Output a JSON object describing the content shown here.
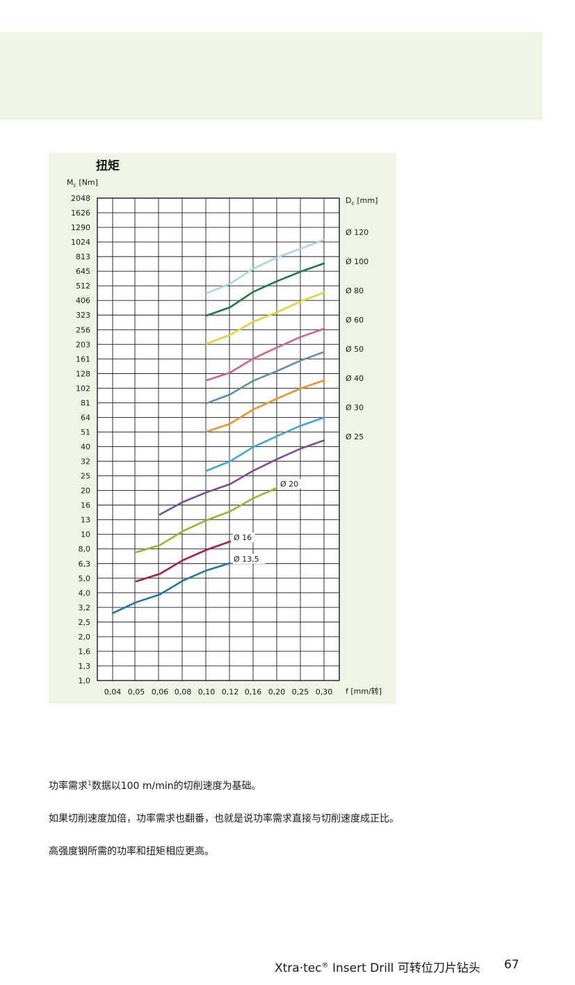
{
  "chart_data": {
    "type": "line",
    "title": "扭矩",
    "ylabel_main": "M",
    "ylabel_sub": "c",
    "ylabel_unit": "[Nm]",
    "right_label_main": "D",
    "right_label_sub": "c",
    "right_label_unit": "[mm]",
    "xlabel": "f [mm/转]",
    "y_scale": "log",
    "grid": true,
    "x_ticks": [
      "0,04",
      "0,05",
      "0,06",
      "0,08",
      "0,10",
      "0,12",
      "0,16",
      "0,20",
      "0,25",
      "0,30"
    ],
    "y_ticks": [
      "1,0",
      "1,3",
      "1,6",
      "2,0",
      "2,5",
      "3,2",
      "4,0",
      "5,0",
      "6,3",
      "8,0",
      "10",
      "13",
      "16",
      "20",
      "25",
      "32",
      "40",
      "51",
      "64",
      "81",
      "102",
      "128",
      "161",
      "203",
      "256",
      "323",
      "406",
      "512",
      "645",
      "813",
      "1024",
      "1290",
      "1626",
      "2048"
    ],
    "right_ticks": [
      "Ø 120",
      "Ø 100",
      "Ø 80",
      "Ø 60",
      "Ø 50",
      "Ø 40",
      "Ø 30",
      "Ø 25"
    ],
    "x": [
      0.04,
      0.05,
      0.06,
      0.08,
      0.1,
      0.12,
      0.16,
      0.2,
      0.25,
      0.3
    ],
    "series": [
      {
        "name": "Ø 13,5",
        "color": "#1c75b7",
        "values": [
          2.9,
          3.45,
          3.9,
          4.85,
          5.7,
          6.4,
          null,
          null,
          null,
          null
        ]
      },
      {
        "name": "Ø 16",
        "color": "#b5164b",
        "values": [
          null,
          4.8,
          5.4,
          6.7,
          7.9,
          9.0,
          null,
          null,
          null,
          null
        ]
      },
      {
        "name": "Ø 20",
        "color": "#9cb32a",
        "values": [
          null,
          7.6,
          8.5,
          10.6,
          12.6,
          14.5,
          17.8,
          21.0,
          null,
          null
        ]
      },
      {
        "name": "Ø 25",
        "color": "#7b4a9c",
        "values": [
          null,
          null,
          13.8,
          16.8,
          19.6,
          22.3,
          27.5,
          33.0,
          39.0,
          44.5
        ]
      },
      {
        "name": "Ø 30",
        "color": "#3aa7d6",
        "values": [
          null,
          null,
          null,
          null,
          27.5,
          32.0,
          40.0,
          47.5,
          56.0,
          64.0
        ]
      },
      {
        "name": "Ø 40",
        "color": "#f0941f",
        "values": [
          null,
          null,
          null,
          null,
          51.0,
          58.0,
          72.5,
          86.0,
          101.0,
          115.0
        ]
      },
      {
        "name": "Ø 50",
        "color": "#5b8fab",
        "values": [
          null,
          null,
          null,
          null,
          80.0,
          92.0,
          114.0,
          133.0,
          157.0,
          180.0
        ]
      },
      {
        "name": "Ø 60",
        "color": "#dc5c8f",
        "values": [
          null,
          null,
          null,
          null,
          115.0,
          130.0,
          162.0,
          193.0,
          228.0,
          260.0
        ]
      },
      {
        "name": "Ø 80",
        "color": "#e2d52e",
        "values": [
          null,
          null,
          null,
          null,
          205.0,
          236.0,
          290.0,
          337.0,
          400.0,
          460.0
        ]
      },
      {
        "name": "Ø 100",
        "color": "#1b7d3a",
        "values": [
          null,
          null,
          null,
          null,
          320.0,
          365.0,
          465.0,
          550.0,
          640.0,
          730.0
        ]
      },
      {
        "name": "Ø 120",
        "color": "#a7d5ec",
        "values": [
          null,
          null,
          null,
          null,
          455.0,
          530.0,
          670.0,
          800.0,
          920.0,
          1060.0
        ]
      }
    ],
    "inline_labels": [
      "Ø 20",
      "Ø 16",
      "Ø 13,5"
    ]
  },
  "notes": {
    "line1_a": "功率需求",
    "line1_sup": "1",
    "line1_b": "数据以100 m/min的切削速度为基础。",
    "line2": "如果切削速度加倍，功率需求也翻番，也就是说功率需求直接与切削速度成正比。",
    "line3": "高强度钢所需的功率和扭矩相应更高。"
  },
  "footer": {
    "brand": "Xtra·tec",
    "reg": "®",
    "product": " Insert Drill 可转位刀片钻头",
    "page": "67"
  }
}
